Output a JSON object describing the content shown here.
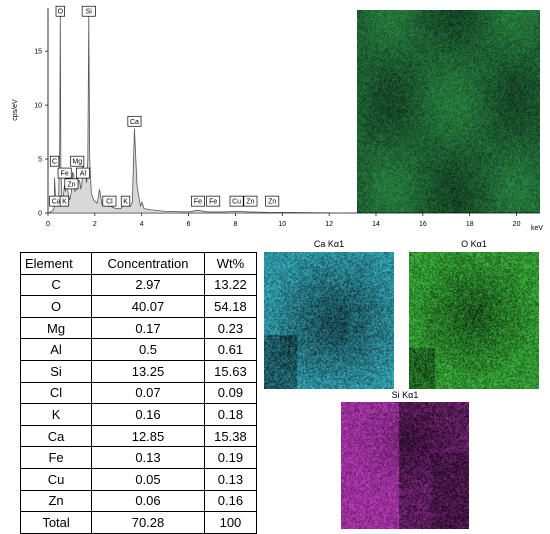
{
  "chart_data": {
    "type": "line",
    "title": "",
    "xlabel": "keV",
    "ylabel": "cps/eV",
    "xlim": [
      0,
      21
    ],
    "ylim": [
      0,
      19
    ],
    "x_ticks": [
      "0",
      "2",
      "4",
      "6",
      "8",
      "10",
      "12",
      "14",
      "16",
      "18",
      "20"
    ],
    "y_ticks": [
      "0",
      "5",
      "10",
      "15"
    ],
    "series": [
      {
        "x": [
          0,
          0.2,
          0.26,
          0.28,
          0.33,
          0.4,
          0.45,
          0.5,
          0.525,
          0.55,
          0.6,
          0.65,
          0.7,
          0.71,
          0.75,
          0.8,
          0.85,
          0.9,
          0.93,
          1.0,
          1.05,
          1.1,
          1.15,
          1.25,
          1.3,
          1.35,
          1.4,
          1.45,
          1.49,
          1.53,
          1.6,
          1.65,
          1.7,
          1.74,
          1.78,
          1.85,
          1.95,
          2.1,
          2.2,
          2.3,
          2.45,
          2.6,
          2.62,
          2.7,
          2.9,
          3.1,
          3.31,
          3.5,
          3.6,
          3.69,
          3.8,
          3.95,
          4.01,
          4.1,
          4.4,
          5,
          6,
          6.4,
          6.8,
          7.5,
          8.05,
          8.6,
          9.5,
          10.5,
          12.8
        ],
        "y": [
          0,
          0.2,
          0.5,
          3.3,
          1.0,
          0.8,
          1.1,
          6.0,
          18.5,
          4.0,
          1.0,
          1.5,
          2.5,
          2.6,
          2.0,
          3.3,
          2.0,
          1.4,
          1.2,
          2.0,
          3.8,
          3.5,
          2.0,
          2.3,
          3.0,
          3.0,
          2.2,
          2.8,
          4.5,
          4.0,
          3.5,
          2.8,
          5.0,
          18.2,
          5.0,
          1.8,
          1.2,
          0.9,
          2.2,
          0.8,
          0.7,
          0.6,
          0.8,
          0.6,
          0.4,
          0.4,
          0.9,
          0.6,
          1.0,
          7.8,
          2.5,
          0.6,
          1.0,
          0.4,
          0.3,
          0.15,
          0.1,
          0.25,
          0.1,
          0.1,
          0.15,
          0.1,
          0.05,
          0.05,
          0
        ]
      }
    ],
    "annotations": [
      {
        "label": "O",
        "x": 0.525,
        "y": 18.7,
        "row": "top"
      },
      {
        "label": "Si",
        "x": 1.74,
        "y": 18.7,
        "row": "top"
      },
      {
        "label": "Ca",
        "x": 3.69,
        "y": 8.5
      },
      {
        "label": "C",
        "x": 0.28,
        "y": 4.8
      },
      {
        "label": "Mg",
        "x": 1.25,
        "y": 4.8
      },
      {
        "label": "Fe",
        "x": 0.71,
        "y": 3.7
      },
      {
        "label": "Zn",
        "x": 1.0,
        "y": 2.7
      },
      {
        "label": "Al",
        "x": 1.49,
        "y": 3.7
      },
      {
        "label": "Ca",
        "x": 0.35,
        "y": 1.1
      },
      {
        "label": "K",
        "x": 0.7,
        "y": 1.1
      },
      {
        "label": "Cl",
        "x": 2.62,
        "y": 1.1
      },
      {
        "label": "K",
        "x": 3.31,
        "y": 1.1
      },
      {
        "label": "Fe",
        "x": 6.4,
        "y": 1.1
      },
      {
        "label": "Fe",
        "x": 7.05,
        "y": 1.1
      },
      {
        "label": "Cu",
        "x": 8.05,
        "y": 1.1
      },
      {
        "label": "Zn",
        "x": 8.64,
        "y": 1.1
      },
      {
        "label": "Zn",
        "x": 9.57,
        "y": 1.1
      }
    ]
  },
  "table": {
    "headers": [
      "Element",
      "Concentration",
      "Wt%"
    ],
    "rows": [
      [
        "C",
        "2.97",
        "13.22"
      ],
      [
        "O",
        "40.07",
        "54.18"
      ],
      [
        "Mg",
        "0.17",
        "0.23"
      ],
      [
        "Al",
        "0.5",
        "0.61"
      ],
      [
        "Si",
        "13.25",
        "15.63"
      ],
      [
        "Cl",
        "0.07",
        "0.09"
      ],
      [
        "K",
        "0.16",
        "0.18"
      ],
      [
        "Ca",
        "12.85",
        "15.38"
      ],
      [
        "Fe",
        "0.13",
        "0.19"
      ],
      [
        "Cu",
        "0.05",
        "0.13"
      ],
      [
        "Zn",
        "0.06",
        "0.16"
      ],
      [
        "Total",
        "70.28",
        "100"
      ]
    ]
  },
  "maps": {
    "ca": {
      "title": "Ca Kα1",
      "color": "#38b8c8",
      "dark": "#0c1d22"
    },
    "o": {
      "title": "O Kα1",
      "color": "#3ec03e",
      "dark": "#0a200c"
    },
    "si": {
      "title": "Si Kα1",
      "color": "#c23cc2",
      "dark": "#210a22"
    },
    "composite": {
      "color": "#2a8a44",
      "dark": "#0d2a1a"
    }
  }
}
